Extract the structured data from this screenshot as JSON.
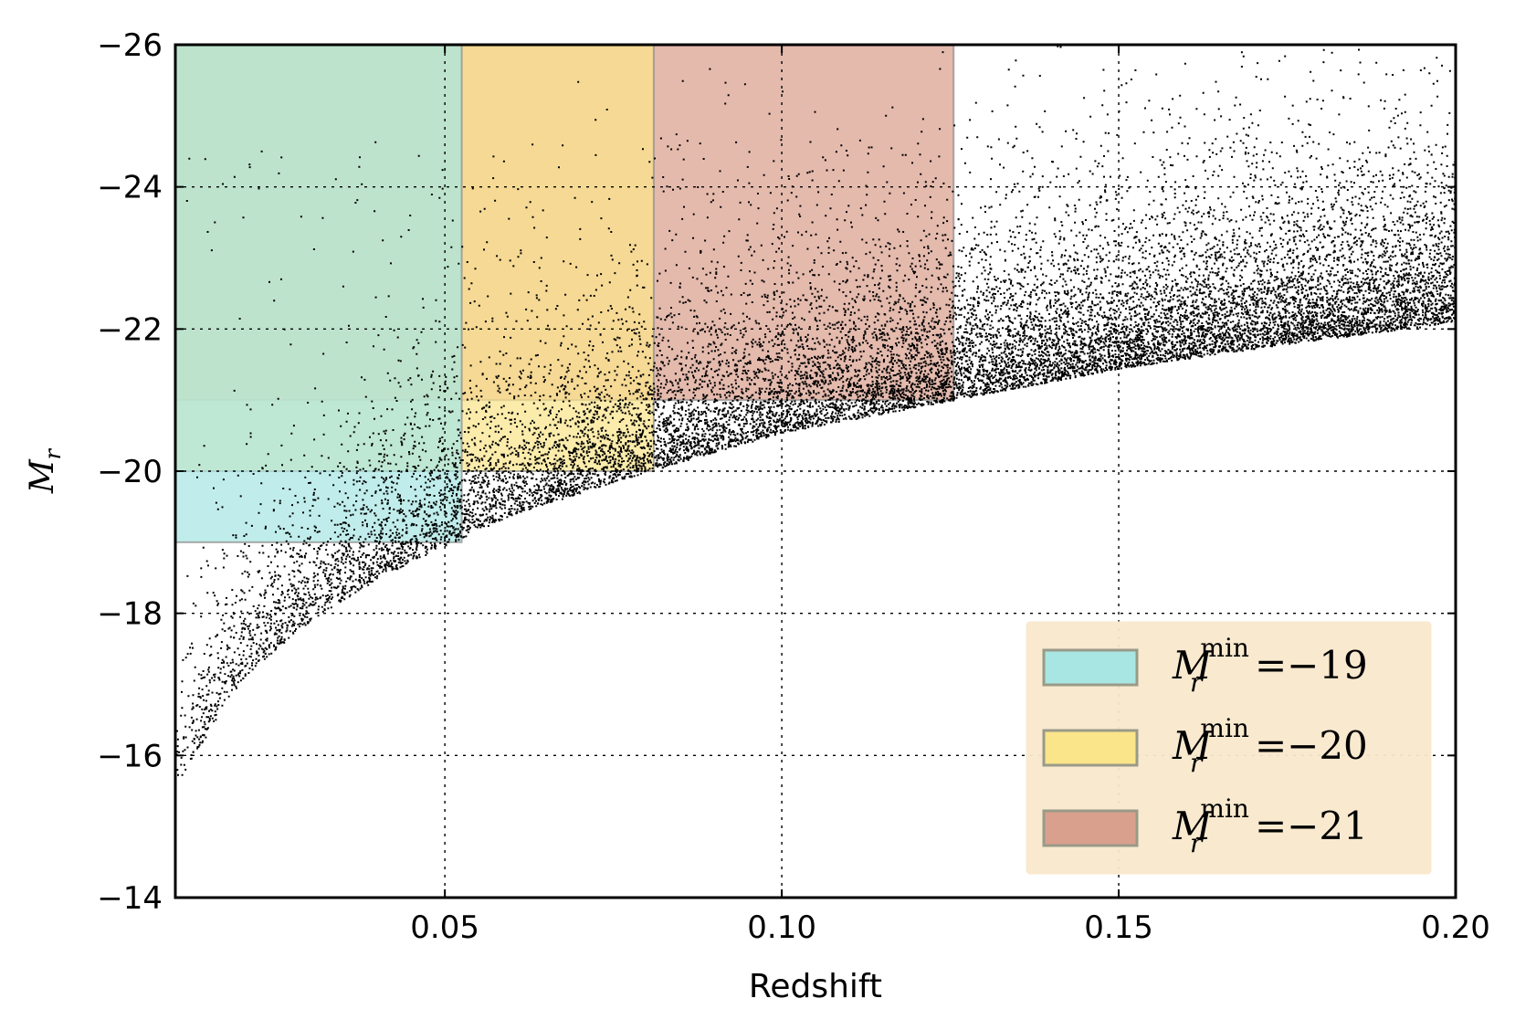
{
  "chart_data": {
    "type": "scatter",
    "title": "",
    "xlabel": "Redshift",
    "ylabel_symbol": "M",
    "ylabel_subscript": "r",
    "xlim": [
      0.01,
      0.2
    ],
    "ylim": [
      -14,
      -26
    ],
    "y_inverted": true,
    "grid": true,
    "x_ticks": [
      0.05,
      0.1,
      0.15,
      0.2
    ],
    "x_tick_labels": [
      "0.05",
      "0.10",
      "0.15",
      "0.20"
    ],
    "y_ticks": [
      -26,
      -24,
      -22,
      -20,
      -18,
      -16,
      -14
    ],
    "y_tick_labels": [
      "−26",
      "−24",
      "−22",
      "−20",
      "−18",
      "−16",
      "−14"
    ],
    "scatter": {
      "color": "#000000",
      "description": "galaxy sample, flux-limited: faint envelope rises from about -15.6 at z=0.01 to about -22.1 at z=0.20",
      "envelope": {
        "x": [
          0.01,
          0.02,
          0.03,
          0.04,
          0.05,
          0.06,
          0.08,
          0.1,
          0.125,
          0.15,
          0.175,
          0.2
        ],
        "y": [
          -15.6,
          -17.1,
          -17.9,
          -18.5,
          -18.95,
          -19.4,
          -20.0,
          -20.55,
          -21.0,
          -21.45,
          -21.8,
          -22.1
        ]
      }
    },
    "regions": [
      {
        "name_symbol": "M",
        "name_sub": "r",
        "name_sup": "min",
        "name_value": "=−19",
        "x_range": [
          0.01,
          0.0525
        ],
        "y_range": [
          -19,
          -26
        ],
        "color": "#a8e6e3"
      },
      {
        "name_symbol": "M",
        "name_sub": "r",
        "name_sup": "min",
        "name_value": "=−20",
        "x_range": [
          0.01,
          0.081
        ],
        "y_range": [
          -20,
          -26
        ],
        "color": "#fbe58a"
      },
      {
        "name_symbol": "M",
        "name_sub": "r",
        "name_sup": "min",
        "name_value": "=−21",
        "x_range": [
          0.01,
          0.1255
        ],
        "y_range": [
          -21,
          -26
        ],
        "color": "#d9a08e"
      }
    ],
    "legend": {
      "position": "lower-right",
      "background": "#f8e8cc"
    }
  }
}
